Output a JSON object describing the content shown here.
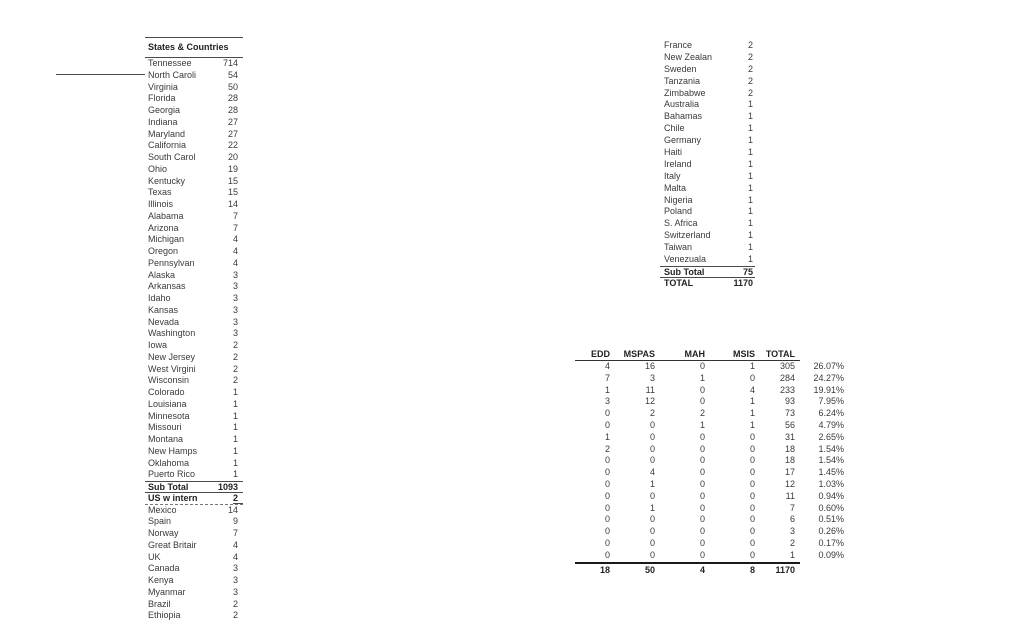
{
  "colors": {
    "background": "#ffffff",
    "text": "#3a3a3a",
    "bold_text": "#222222",
    "rule_line": "#4a4a4a"
  },
  "states_table": {
    "header": "States & Countries",
    "rows": [
      {
        "label": "Tennessee",
        "value": "714"
      },
      {
        "label": "North Caroli",
        "value": "54"
      },
      {
        "label": "Virginia",
        "value": "50"
      },
      {
        "label": "Florida",
        "value": "28"
      },
      {
        "label": "Georgia",
        "value": "28"
      },
      {
        "label": "Indiana",
        "value": "27"
      },
      {
        "label": "Maryland",
        "value": "27"
      },
      {
        "label": "California",
        "value": "22"
      },
      {
        "label": "South Carol",
        "value": "20"
      },
      {
        "label": "Ohio",
        "value": "19"
      },
      {
        "label": "Kentucky",
        "value": "15"
      },
      {
        "label": "Texas",
        "value": "15"
      },
      {
        "label": "Illinois",
        "value": "14"
      },
      {
        "label": "Alabama",
        "value": "7"
      },
      {
        "label": "Arizona",
        "value": "7"
      },
      {
        "label": "Michigan",
        "value": "4"
      },
      {
        "label": "Oregon",
        "value": "4"
      },
      {
        "label": "Pennsylvan",
        "value": "4"
      },
      {
        "label": "Alaska",
        "value": "3"
      },
      {
        "label": "Arkansas",
        "value": "3"
      },
      {
        "label": "Idaho",
        "value": "3"
      },
      {
        "label": "Kansas",
        "value": "3"
      },
      {
        "label": "Nevada",
        "value": "3"
      },
      {
        "label": "Washington",
        "value": "3"
      },
      {
        "label": "Iowa",
        "value": "2"
      },
      {
        "label": "New Jersey",
        "value": "2"
      },
      {
        "label": "West Virgini",
        "value": "2"
      },
      {
        "label": "Wisconsin",
        "value": "2"
      },
      {
        "label": "Colorado",
        "value": "1"
      },
      {
        "label": "Louisiana",
        "value": "1"
      },
      {
        "label": "Minnesota",
        "value": "1"
      },
      {
        "label": "Missouri",
        "value": "1"
      },
      {
        "label": "Montana",
        "value": "1"
      },
      {
        "label": "New Hamps",
        "value": "1"
      },
      {
        "label": "Oklahoma",
        "value": "1"
      },
      {
        "label": "Puerto Rico",
        "value": "1"
      }
    ],
    "sub_total": {
      "label": "Sub Total",
      "value": "1093"
    },
    "us_w_intern": {
      "label": "US w intern",
      "value": "2"
    },
    "country_rows": [
      {
        "label": "Mexico",
        "value": "14"
      },
      {
        "label": "Spain",
        "value": "9"
      },
      {
        "label": "Norway",
        "value": "7"
      },
      {
        "label": "Great Britair",
        "value": "4"
      },
      {
        "label": "UK",
        "value": "4"
      },
      {
        "label": "Canada",
        "value": "3"
      },
      {
        "label": "Kenya",
        "value": "3"
      },
      {
        "label": "Myanmar",
        "value": "3"
      },
      {
        "label": "Brazil",
        "value": "2"
      },
      {
        "label": "Ethiopia",
        "value": "2"
      }
    ]
  },
  "countries_list": {
    "rows": [
      {
        "label": "France",
        "value": "2"
      },
      {
        "label": "New Zealan",
        "value": "2"
      },
      {
        "label": "Sweden",
        "value": "2"
      },
      {
        "label": "Tanzania",
        "value": "2"
      },
      {
        "label": "Zimbabwe",
        "value": "2"
      },
      {
        "label": "Australia",
        "value": "1"
      },
      {
        "label": "Bahamas",
        "value": "1"
      },
      {
        "label": "Chile",
        "value": "1"
      },
      {
        "label": "Germany",
        "value": "1"
      },
      {
        "label": "Haiti",
        "value": "1"
      },
      {
        "label": "Ireland",
        "value": "1"
      },
      {
        "label": "Italy",
        "value": "1"
      },
      {
        "label": "Malta",
        "value": "1"
      },
      {
        "label": "Nigeria",
        "value": "1"
      },
      {
        "label": "Poland",
        "value": "1"
      },
      {
        "label": "S. Africa",
        "value": "1"
      },
      {
        "label": "Switzerland",
        "value": "1"
      },
      {
        "label": "Taiwan",
        "value": "1"
      },
      {
        "label": "Venezuala",
        "value": "1"
      }
    ],
    "sub_total": {
      "label": "Sub Total",
      "value": "75"
    },
    "total": {
      "label": "TOTAL",
      "value": "1170"
    }
  },
  "summary_table": {
    "headers": [
      "EDD",
      "MSPAS",
      "MAH",
      "MSIS",
      "TOTAL"
    ],
    "rows": [
      {
        "cells": [
          "4",
          "16",
          "0",
          "1",
          "305"
        ],
        "pct": "26.07%"
      },
      {
        "cells": [
          "7",
          "3",
          "1",
          "0",
          "284"
        ],
        "pct": "24.27%"
      },
      {
        "cells": [
          "1",
          "11",
          "0",
          "4",
          "233"
        ],
        "pct": "19.91%"
      },
      {
        "cells": [
          "3",
          "12",
          "0",
          "1",
          "93"
        ],
        "pct": "7.95%"
      },
      {
        "cells": [
          "0",
          "2",
          "2",
          "1",
          "73"
        ],
        "pct": "6.24%"
      },
      {
        "cells": [
          "0",
          "0",
          "1",
          "1",
          "56"
        ],
        "pct": "4.79%"
      },
      {
        "cells": [
          "1",
          "0",
          "0",
          "0",
          "31"
        ],
        "pct": "2.65%"
      },
      {
        "cells": [
          "2",
          "0",
          "0",
          "0",
          "18"
        ],
        "pct": "1.54%"
      },
      {
        "cells": [
          "0",
          "0",
          "0",
          "0",
          "18"
        ],
        "pct": "1.54%"
      },
      {
        "cells": [
          "0",
          "4",
          "0",
          "0",
          "17"
        ],
        "pct": "1.45%"
      },
      {
        "cells": [
          "0",
          "1",
          "0",
          "0",
          "12"
        ],
        "pct": "1.03%"
      },
      {
        "cells": [
          "0",
          "0",
          "0",
          "0",
          "11"
        ],
        "pct": "0.94%"
      },
      {
        "cells": [
          "0",
          "1",
          "0",
          "0",
          "7"
        ],
        "pct": "0.60%"
      },
      {
        "cells": [
          "0",
          "0",
          "0",
          "0",
          "6"
        ],
        "pct": "0.51%"
      },
      {
        "cells": [
          "0",
          "0",
          "0",
          "0",
          "3"
        ],
        "pct": "0.26%"
      },
      {
        "cells": [
          "0",
          "0",
          "0",
          "0",
          "2"
        ],
        "pct": "0.17%"
      },
      {
        "cells": [
          "0",
          "0",
          "0",
          "0",
          "1"
        ],
        "pct": "0.09%"
      }
    ],
    "totals": [
      "18",
      "50",
      "4",
      "8",
      "1170"
    ]
  }
}
